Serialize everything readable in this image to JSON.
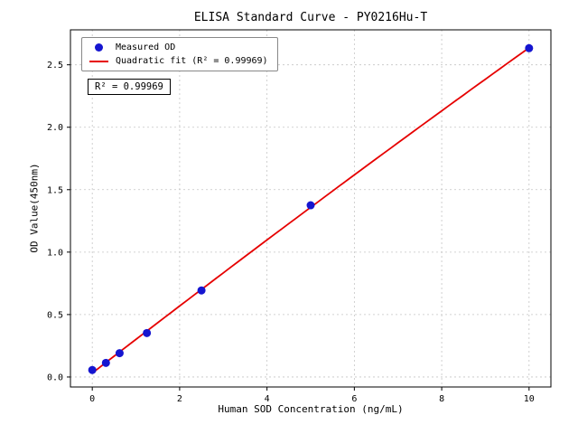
{
  "chart_data": {
    "type": "scatter",
    "title": "ELISA Standard Curve - PY0216Hu-T",
    "xlabel": "Human SOD Concentration (ng/mL)",
    "ylabel": "OD Value(450nm)",
    "points": {
      "x": [
        0,
        0.3125,
        0.625,
        1.25,
        2.5,
        5,
        10
      ],
      "y": [
        0.056,
        0.113,
        0.191,
        0.352,
        0.693,
        1.375,
        2.633
      ]
    },
    "fit": {
      "type": "quadratic",
      "r_squared_label": "R² = 0.99969"
    },
    "xlim": [
      -0.5,
      10.5
    ],
    "ylim": [
      -0.08,
      2.78
    ],
    "xticks": [
      0,
      2,
      4,
      6,
      8,
      10
    ],
    "xtick_labels": [
      "0",
      "2",
      "4",
      "6",
      "8",
      "10"
    ],
    "yticks": [
      0.0,
      0.5,
      1.0,
      1.5,
      2.0,
      2.5
    ],
    "ytick_labels": [
      "0.0",
      "0.5",
      "1.0",
      "1.5",
      "2.0",
      "2.5"
    ],
    "grid": true,
    "legend_position": "upper-left",
    "legend": [
      {
        "marker": "dot",
        "label": "Measured OD"
      },
      {
        "marker": "line",
        "label": "Quadratic fit (R² = 0.99969)"
      }
    ],
    "annotation": "R² = 0.99969",
    "colors": {
      "point": "#1515d0",
      "line": "#e60000",
      "grid": "#c4c4c4",
      "text": "#000000"
    }
  }
}
